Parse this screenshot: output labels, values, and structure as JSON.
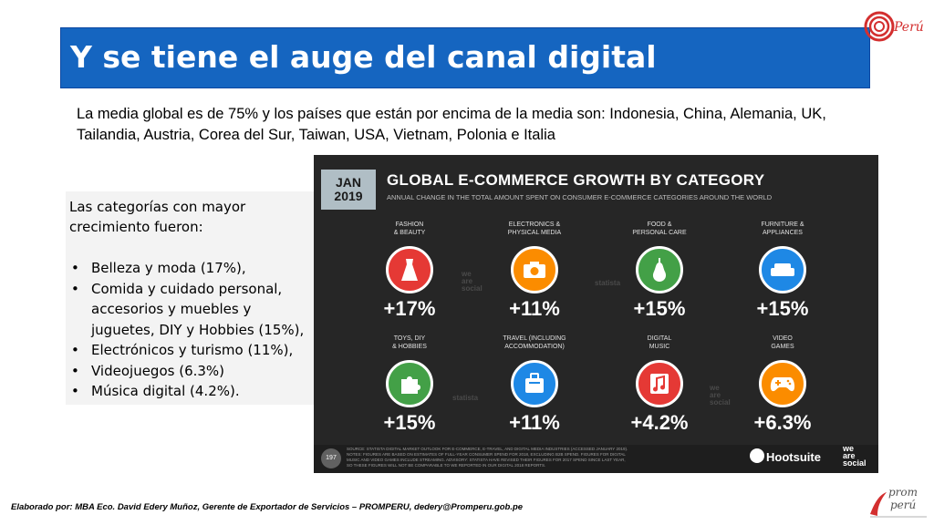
{
  "slide": {
    "title": "Y se tiene el auge del canal digital",
    "subtitle": "La media global es de 75% y los países que están por encima de la media son: Indonesia, China, Alemania, UK, Tailandia, Austria, Corea del Sur, Taiwan, USA, Vietnam, Polonia e Italia",
    "left_intro": "Las categorías con mayor crecimiento fueron:",
    "left_items": [
      "Belleza y moda (17%),",
      "Comida y cuidado personal, accesorios y muebles y juguetes, DIY y Hobbies (15%),",
      " Electrónicos y turismo (11%),",
      "Videojuegos (6.3%)",
      "Música digital  (4.2%)."
    ],
    "footer_credit": "Elaborado por: MBA Eco. David Edery Muñoz, Gerente de Exportador de Servicios – PROMPERU, dedery@Promperu.gob.pe",
    "logo_top": "Perú",
    "logo_bottom_line1": "prom",
    "logo_bottom_line2": "perú"
  },
  "infographic": {
    "badge_line1": "JAN",
    "badge_line2": "2019",
    "title": "GLOBAL E-COMMERCE GROWTH BY CATEGORY",
    "subtitle": "ANNUAL CHANGE IN THE TOTAL AMOUNT SPENT ON CONSUMER E-COMMERCE CATEGORIES AROUND THE WORLD",
    "categories": [
      {
        "label_line1": "FASHION",
        "label_line2": "& BEAUTY",
        "value": "+17%",
        "color": "#e53935",
        "icon": "dress-icon"
      },
      {
        "label_line1": "ELECTRONICS &",
        "label_line2": "PHYSICAL MEDIA",
        "value": "+11%",
        "color": "#fb8c00",
        "icon": "camera-icon"
      },
      {
        "label_line1": "FOOD &",
        "label_line2": "PERSONAL CARE",
        "value": "+15%",
        "color": "#43a047",
        "icon": "pear-icon"
      },
      {
        "label_line1": "FURNITURE &",
        "label_line2": "APPLIANCES",
        "value": "+15%",
        "color": "#1e88e5",
        "icon": "sofa-icon"
      },
      {
        "label_line1": "TOYS, DIY",
        "label_line2": "& HOBBIES",
        "value": "+15%",
        "color": "#43a047",
        "icon": "puzzle-icon"
      },
      {
        "label_line1": "TRAVEL (INCLUDING",
        "label_line2": "ACCOMMODATION)",
        "value": "+11%",
        "color": "#1e88e5",
        "icon": "suitcase-icon"
      },
      {
        "label_line1": "DIGITAL",
        "label_line2": "MUSIC",
        "value": "+4.2%",
        "color": "#e53935",
        "icon": "music-note-icon"
      },
      {
        "label_line1": "VIDEO",
        "label_line2": "GAMES",
        "value": "+6.3%",
        "color": "#fb8c00",
        "icon": "gamepad-icon"
      }
    ],
    "watermark_statista": "statista",
    "watermark_was_1": "we",
    "watermark_was_2": "are",
    "watermark_was_3": "social",
    "page_number": "197",
    "source_text": "SOURCE: STATISTA DIGITAL MARKET OUTLOOK FOR E-COMMERCE, E-TRAVEL, AND DIGITAL MEDIA INDUSTRIES (ACCESSED JANUARY 2019). NOTES: FIGURES ARE BASED ON ESTIMATES OF FULL-YEAR CONSUMER SPEND FOR 2018, EXCLUDING B2B SPEND. FIGURES FOR DIGITAL MUSIC AND VIDEO GAMES INCLUDE STREAMING. ADVISORY: STATISTA HAVE REVISED THEIR FIGURES FOR 2017 SPEND SINCE LAST YEAR, SO THESE FIGURES WILL NOT BE COMPARABLE TO WE REPORTED IN OUR DIGITAL 2018 REPORTS.",
    "brand_hootsuite": "Hootsuite",
    "brand_was_1": "we",
    "brand_was_2": "are",
    "brand_was_3": "social"
  }
}
